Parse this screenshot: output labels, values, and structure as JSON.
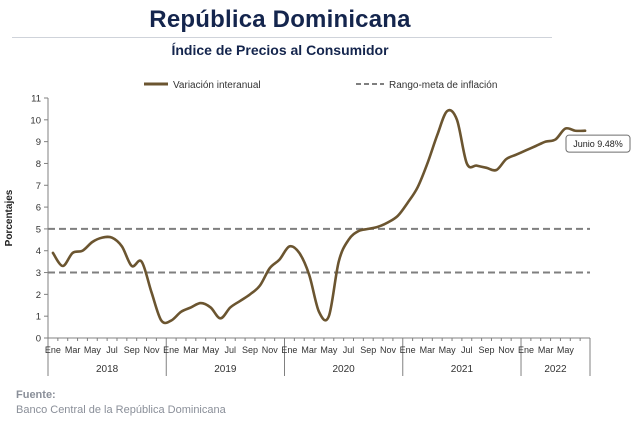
{
  "title": "República Dominicana",
  "subtitle": "Índice de Precios al Consumidor",
  "source": {
    "label": "Fuente:",
    "text": "Banco Central de la República Dominicana"
  },
  "chart_data": {
    "type": "line",
    "ylabel": "Porcentajes",
    "ylim": [
      0,
      11
    ],
    "yticks": [
      0,
      1,
      2,
      3,
      4,
      5,
      6,
      7,
      8,
      9,
      10,
      11
    ],
    "grid": false,
    "legend_position": "top",
    "month_tick_labels": [
      "Ene",
      "Mar",
      "May",
      "Jul",
      "Sep",
      "Nov"
    ],
    "month_tick_labels_last_year": [
      "Ene",
      "Mar",
      "May"
    ],
    "years": [
      "2018",
      "2019",
      "2020",
      "2021",
      "2022"
    ],
    "series": [
      {
        "name": "Variación interanual",
        "color": "#6b5530",
        "style": "solid",
        "values": [
          3.9,
          3.3,
          3.9,
          4.0,
          4.4,
          4.6,
          4.6,
          4.2,
          3.3,
          3.5,
          2.1,
          0.8,
          0.8,
          1.2,
          1.4,
          1.6,
          1.4,
          0.9,
          1.4,
          1.7,
          2.0,
          2.4,
          3.2,
          3.6,
          4.2,
          3.9,
          2.9,
          1.2,
          1.0,
          3.5,
          4.5,
          4.9,
          5.0,
          5.1,
          5.3,
          5.6,
          6.2,
          6.9,
          8.0,
          9.3,
          10.4,
          10.0,
          8.0,
          7.9,
          7.8,
          7.7,
          8.2,
          8.4,
          8.6,
          8.8,
          9.0,
          9.1,
          9.6,
          9.5,
          9.5
        ]
      },
      {
        "name": "Rango-meta de inflación",
        "color": "#7f7f7f",
        "style": "dashed",
        "values": [
          3,
          5
        ]
      }
    ],
    "annotation": {
      "label": "Junio 9.48%",
      "x": "2022-06",
      "y": 9.48
    }
  }
}
